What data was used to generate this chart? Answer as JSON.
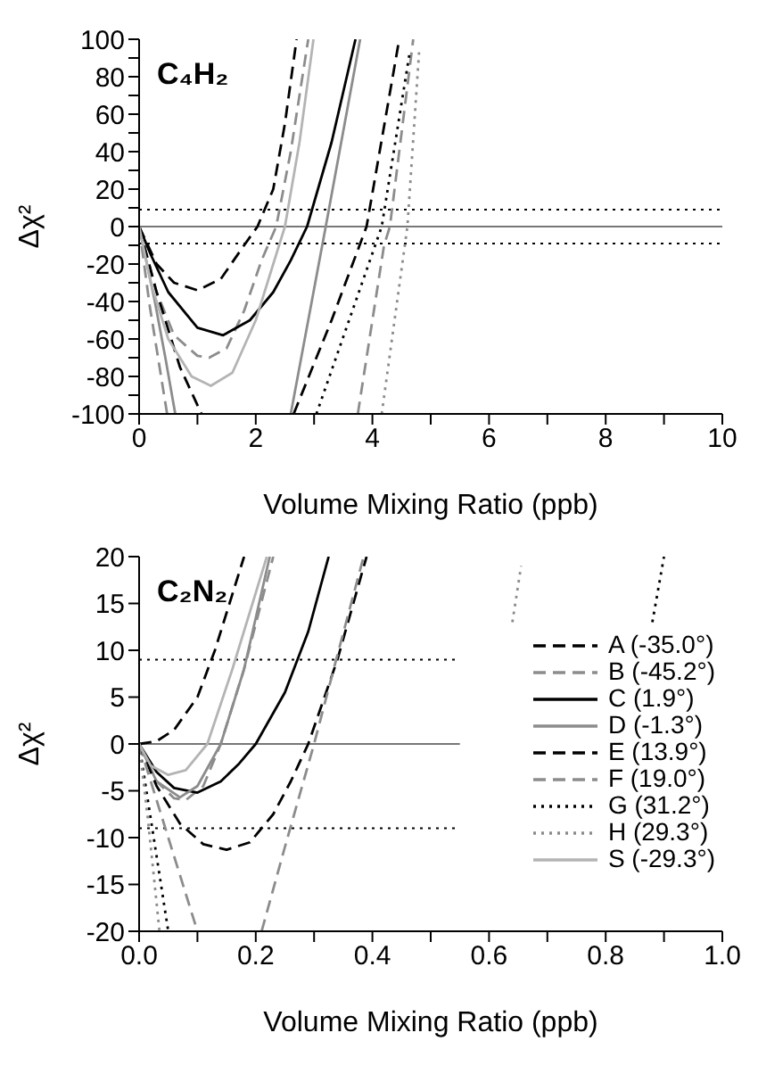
{
  "chart_data": [
    {
      "type": "line",
      "annotations": [
        "C₄H₂"
      ],
      "xlabel": "Volume Mixing Ratio (ppb)",
      "ylabel": "Δχ²",
      "xlim": [
        0,
        10
      ],
      "ylim": [
        -100,
        100
      ],
      "xticks": [
        0,
        {
          "value": 1,
          "label": null
        },
        2,
        {
          "value": 3,
          "label": null
        },
        4,
        {
          "value": 5,
          "label": null
        },
        6,
        {
          "value": 7,
          "label": null
        },
        8,
        {
          "value": 9,
          "label": null
        },
        10
      ],
      "yticks": [
        -100,
        {
          "value": -90,
          "label": null
        },
        -80,
        {
          "value": -70,
          "label": null
        },
        -60,
        {
          "value": -50,
          "label": null
        },
        -40,
        {
          "value": -30,
          "label": null
        },
        -20,
        {
          "value": -10,
          "label": null
        },
        0,
        {
          "value": 10,
          "label": null
        },
        20,
        {
          "value": 30,
          "label": null
        },
        40,
        {
          "value": 50,
          "label": null
        },
        60,
        {
          "value": 70,
          "label": null
        },
        80,
        {
          "value": 90,
          "label": null
        },
        100
      ],
      "legend": false,
      "marker": "none",
      "ref_lines": [
        {
          "axis": "y",
          "value": 9,
          "color": "#000000",
          "line_style": "dotted"
        },
        {
          "axis": "y",
          "value": -9,
          "color": "#000000",
          "line_style": "dotted"
        },
        {
          "axis": "y",
          "value": 0,
          "color": "#777777",
          "line_style": "solid"
        }
      ],
      "series": [
        {
          "color": "#000000",
          "line_style": "dashed",
          "x": [
            0,
            0.3,
            0.6,
            1.0,
            1.4,
            1.8,
            2.03,
            2.3,
            2.5,
            2.7
          ],
          "values": [
            0,
            -20,
            -30,
            -34,
            -28,
            -10,
            0,
            20,
            55,
            100
          ]
        },
        {
          "color": "#8c8c8c",
          "line_style": "dashed",
          "x": [
            0,
            0.3,
            0.6,
            1.0,
            1.2,
            1.5,
            1.8,
            2.1,
            2.35,
            2.6,
            2.9
          ],
          "values": [
            0,
            -35,
            -58,
            -69,
            -70,
            -65,
            -45,
            -18,
            0,
            40,
            100
          ]
        },
        {
          "color": "#000000",
          "line_style": "solid",
          "x": [
            0,
            0.2,
            0.5,
            1.0,
            1.44,
            1.9,
            2.3,
            2.6,
            2.88,
            3.3,
            3.71
          ],
          "values": [
            0,
            -15,
            -35,
            -54,
            -58,
            -50,
            -35,
            -18,
            0,
            45,
            100
          ]
        },
        {
          "color": "#8c8c8c",
          "line_style": "solid",
          "x": [
            0,
            0.27,
            0.45,
            0.62,
            1.6,
            2.6,
            3.2,
            3.79
          ],
          "values": [
            0,
            -40,
            -70,
            -100,
            null,
            -100,
            0,
            100
          ]
        },
        {
          "color": "#000000",
          "line_style": "dashed",
          "x": [
            0,
            0.3,
            0.7,
            1.07,
            1.9,
            2.65,
            3.3,
            3.9,
            4.46
          ],
          "values": [
            0,
            -35,
            -75,
            -100,
            null,
            -100,
            -50,
            0,
            100
          ]
        },
        {
          "color": "#8c8c8c",
          "line_style": "dashed",
          "x": [
            0,
            0.18,
            0.48,
            2.0,
            3.75,
            4.2,
            4.3,
            4.7
          ],
          "values": [
            0,
            -42,
            -100,
            null,
            -100,
            -10,
            0,
            100
          ]
        },
        {
          "color": "#000000",
          "line_style": "dotted",
          "x": [
            3.04,
            3.6,
            4.16,
            4.64
          ],
          "values": [
            -100,
            -50,
            0,
            93
          ]
        },
        {
          "color": "#8c8c8c",
          "line_style": "dotted",
          "x": [
            4.16,
            4.6,
            4.8
          ],
          "values": [
            -100,
            0,
            93
          ]
        },
        {
          "color": "#b4b4b4",
          "line_style": "solid",
          "x": [
            0,
            0.2,
            0.5,
            0.9,
            1.23,
            1.6,
            2.0,
            2.3,
            2.5,
            2.75,
            2.99
          ],
          "values": [
            0,
            -30,
            -60,
            -80,
            -85,
            -78,
            -50,
            -20,
            0,
            45,
            100
          ]
        }
      ]
    },
    {
      "type": "line",
      "annotations": [
        "C₂N₂"
      ],
      "xlabel": "Volume Mixing Ratio (ppb)",
      "ylabel": "Δχ²",
      "xlim": [
        0,
        1
      ],
      "ylim": [
        -20,
        20
      ],
      "xticks": [
        {
          "value": 0,
          "label": "0.0"
        },
        {
          "value": 0.1,
          "label": null
        },
        0.2,
        {
          "value": 0.3,
          "label": null
        },
        0.4,
        {
          "value": 0.5,
          "label": null
        },
        0.6,
        {
          "value": 0.7,
          "label": null
        },
        0.8,
        {
          "value": 0.9,
          "label": null
        },
        {
          "value": 1,
          "label": "1.0"
        }
      ],
      "yticks": [
        -20,
        -15,
        -10,
        -5,
        0,
        5,
        10,
        15,
        20
      ],
      "legend": "right",
      "marker": "none",
      "ref_lines": [
        {
          "axis": "y",
          "value": 9,
          "color": "#000000",
          "line_style": "dotted"
        },
        {
          "axis": "y",
          "value": -9,
          "color": "#000000",
          "line_style": "dotted"
        },
        {
          "axis": "y",
          "value": 0,
          "color": "#777777",
          "line_style": "solid"
        }
      ],
      "series": [
        {
          "name": "A (-35.0°)",
          "color": "#000000",
          "line_style": "dashed",
          "x": [
            0,
            0.03,
            0.06,
            0.1,
            0.13,
            0.15,
            0.18
          ],
          "values": [
            0,
            0.3,
            1.5,
            5,
            10,
            14,
            20
          ]
        },
        {
          "name": "B (-45.2°)",
          "color": "#8c8c8c",
          "line_style": "dashed",
          "x": [
            0,
            0.03,
            0.06,
            0.08,
            0.11,
            0.14,
            0.18,
            0.23
          ],
          "values": [
            0,
            -4,
            -5.8,
            -6,
            -4.5,
            0,
            8,
            20
          ]
        },
        {
          "name": "C (1.9°)",
          "color": "#000000",
          "line_style": "solid",
          "x": [
            0,
            0.03,
            0.06,
            0.1,
            0.14,
            0.17,
            0.2,
            0.25,
            0.29,
            0.325
          ],
          "values": [
            0,
            -3,
            -4.7,
            -5.2,
            -4,
            -2.2,
            0,
            5.5,
            12,
            20
          ]
        },
        {
          "name": "D (-1.3°)",
          "color": "#8c8c8c",
          "line_style": "solid",
          "x": [
            0,
            0.03,
            0.07,
            0.1,
            0.14,
            0.18,
            0.224
          ],
          "values": [
            0,
            -4,
            -5.7,
            -4.5,
            0,
            8,
            20
          ]
        },
        {
          "name": "E (13.9°)",
          "color": "#000000",
          "line_style": "dashed",
          "x": [
            0,
            0.03,
            0.07,
            0.11,
            0.15,
            0.19,
            0.23,
            0.26,
            0.29,
            0.34,
            0.39
          ],
          "values": [
            0,
            -4.5,
            -8.5,
            -10.7,
            -11.3,
            -10.5,
            -7.5,
            -4,
            0,
            9,
            20
          ]
        },
        {
          "name": "F (19.0°)",
          "color": "#8c8c8c",
          "line_style": "dashed",
          "x": [
            0,
            0.03,
            0.06,
            0.1,
            0.15,
            0.21,
            0.25,
            0.3,
            0.34,
            0.385
          ],
          "values": [
            0,
            -6,
            -12,
            -20,
            null,
            -20,
            -11,
            0,
            9.5,
            20
          ]
        },
        {
          "name": "G (31.2°)",
          "color": "#000000",
          "line_style": "dotted",
          "x": [
            0,
            0.02,
            0.05,
            0.5,
            0.88,
            0.9
          ],
          "values": [
            0,
            -8,
            -20,
            null,
            13,
            20
          ]
        },
        {
          "name": "H (29.3°)",
          "color": "#8c8c8c",
          "line_style": "dotted",
          "x": [
            0,
            0.015,
            0.035,
            0.3,
            0.64,
            0.655
          ],
          "values": [
            0,
            -8,
            -20,
            null,
            13,
            19
          ]
        },
        {
          "name": "S (-29.3°)",
          "color": "#b4b4b4",
          "line_style": "solid",
          "x": [
            0,
            0.02,
            0.05,
            0.08,
            0.117,
            0.16,
            0.219
          ],
          "values": [
            0,
            -2.3,
            -3.3,
            -2.8,
            0,
            8,
            20
          ]
        }
      ]
    }
  ]
}
